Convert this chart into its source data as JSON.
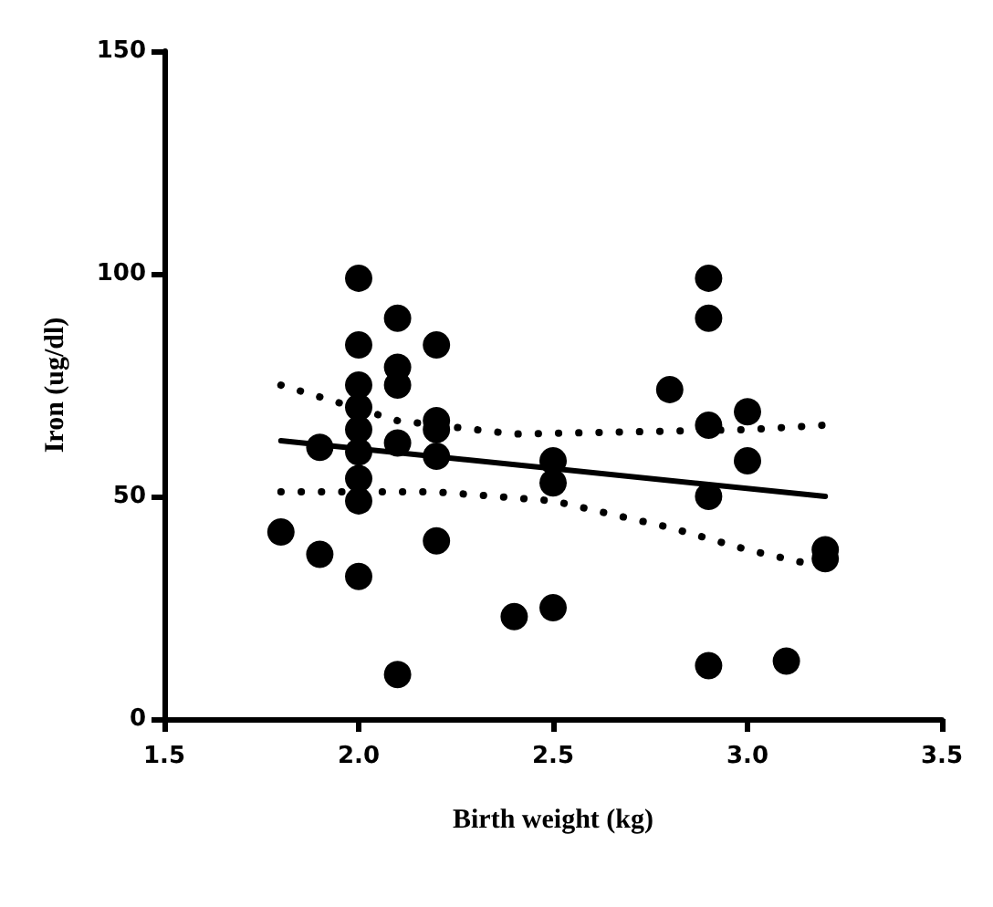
{
  "chart_data": {
    "type": "scatter",
    "xlabel": "Birth weight (kg)",
    "ylabel": "Iron (ug/dl)",
    "xlim": [
      1.5,
      3.5
    ],
    "xticks": [
      {
        "value": 1.5,
        "label": "1.5"
      },
      {
        "value": 2,
        "label": "2.0"
      },
      {
        "value": 2.5,
        "label": "2.5"
      },
      {
        "value": 3,
        "label": "3.0"
      },
      {
        "value": 3.5,
        "label": "3.5"
      }
    ],
    "ylim": [
      0,
      150
    ],
    "yticks": [
      0,
      50,
      100,
      150
    ],
    "grid": false,
    "series": [
      {
        "marker": "circle",
        "color": "#000000",
        "x": [
          1.8,
          1.9,
          1.9,
          2.0,
          2.0,
          2.0,
          2.0,
          2.0,
          2.0,
          2.0,
          2.0,
          2.0,
          2.1,
          2.1,
          2.1,
          2.1,
          2.1,
          2.2,
          2.2,
          2.2,
          2.2,
          2.2,
          2.4,
          2.5,
          2.5,
          2.5,
          2.8,
          2.9,
          2.9,
          2.9,
          2.9,
          2.9,
          3.0,
          3.0,
          3.1,
          3.2,
          3.2
        ],
        "values": [
          42,
          37,
          61,
          99,
          84,
          75,
          70,
          65,
          60,
          54,
          49,
          32,
          90,
          79,
          75,
          62,
          10,
          84,
          67,
          65,
          59,
          40,
          23,
          58,
          53,
          25,
          74,
          99,
          90,
          66,
          50,
          12,
          69,
          58,
          13,
          38,
          36
        ]
      },
      {
        "type": "line",
        "marker": "none",
        "line_style": "solid",
        "color": "#000000",
        "x": [
          1.8,
          3.2
        ],
        "values": [
          62.5,
          50
        ]
      },
      {
        "type": "line",
        "marker": "none",
        "line_style": "dotted",
        "color": "#000000",
        "x": [
          1.8,
          2.1,
          2.4,
          2.7,
          3.0,
          3.2
        ],
        "values": [
          75,
          67,
          64,
          64.5,
          65,
          66
        ]
      },
      {
        "type": "line",
        "marker": "none",
        "line_style": "dotted",
        "color": "#000000",
        "x": [
          1.8,
          2.2,
          2.5,
          2.8,
          3.0,
          3.2
        ],
        "values": [
          51,
          51,
          49,
          43,
          38,
          34
        ]
      }
    ]
  }
}
